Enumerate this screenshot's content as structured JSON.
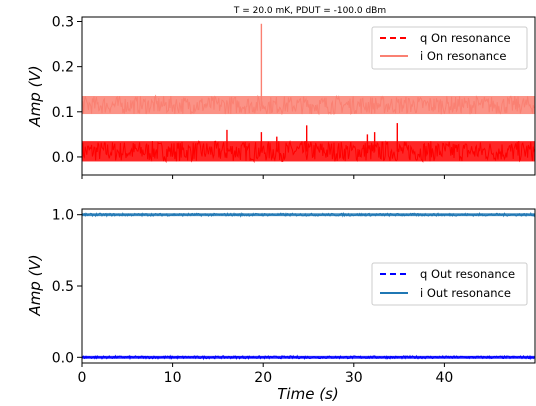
{
  "figure_title": "T = 20.0 mK, PDUT = -100.0 dBm",
  "chart_data": [
    {
      "type": "line",
      "panel": "top",
      "xlabel": "",
      "ylabel": "Amp (V)",
      "xlim": [
        0,
        50
      ],
      "ylim": [
        -0.04,
        0.31
      ],
      "xticks": [
        0,
        10,
        20,
        30,
        40
      ],
      "yticks": [
        0.0,
        0.1,
        0.2,
        0.3
      ],
      "ytick_labels": [
        "0.0",
        "0.1",
        "0.2",
        "0.3"
      ],
      "legend_position": "top-right",
      "series": [
        {
          "name": "q On resonance",
          "color": "#ff0000",
          "line_style": "dashed",
          "baseline": 0.012,
          "noise_band": [
            -0.01,
            0.035
          ],
          "spikes": [
            [
              16.0,
              0.06
            ],
            [
              19.8,
              0.055
            ],
            [
              21.5,
              0.045
            ],
            [
              24.8,
              0.07
            ],
            [
              31.5,
              0.05
            ],
            [
              32.3,
              0.055
            ],
            [
              34.8,
              0.075
            ]
          ]
        },
        {
          "name": "i On resonance",
          "color": "#fa8072",
          "line_style": "solid",
          "baseline": 0.115,
          "noise_band": [
            0.095,
            0.135
          ],
          "spikes": [
            [
              19.8,
              0.295
            ]
          ]
        }
      ]
    },
    {
      "type": "line",
      "panel": "bottom",
      "xlabel": "Time (s)",
      "ylabel": "Amp (V)",
      "xlim": [
        0,
        50
      ],
      "ylim": [
        -0.04,
        1.04
      ],
      "xticks": [
        0,
        10,
        20,
        30,
        40
      ],
      "xtick_labels": [
        "0",
        "10",
        "20",
        "30",
        "40"
      ],
      "yticks": [
        0.0,
        0.5,
        1.0
      ],
      "ytick_labels": [
        "0.0",
        "0.5",
        "1.0"
      ],
      "legend_position": "center-right",
      "series": [
        {
          "name": "q Out resonance",
          "color": "#0000ff",
          "line_style": "dashed",
          "baseline": 0.0,
          "noise_band": [
            -0.01,
            0.01
          ]
        },
        {
          "name": "i Out resonance",
          "color": "#1f77b4",
          "line_style": "solid",
          "baseline": 1.0,
          "noise_band": [
            0.99,
            1.01
          ]
        }
      ]
    }
  ]
}
